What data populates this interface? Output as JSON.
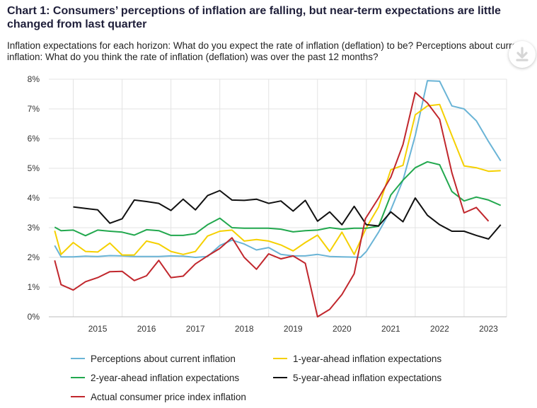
{
  "header": {
    "title": "Chart 1: Consumers’ perceptions of inflation are falling, but near-term expectations are little changed from last quarter",
    "subtitle": "Inflation expectations for each horizon: What do you expect the rate of inflation (deflation) to be? Perceptions about current inflation: What do you think the rate of inflation (deflation) was over the past 12 months?"
  },
  "toolbar": {
    "download_icon": "download-icon"
  },
  "chart_data": {
    "type": "line",
    "title": "Chart 1: Consumers’ perceptions of inflation are falling, but near-term expectations are little changed from last quarter",
    "xlabel": "",
    "ylabel": "",
    "x_range": [
      2014.5,
      2023.87
    ],
    "ylim": [
      0,
      8
    ],
    "grid": true,
    "y_ticks": [
      "0%",
      "1%",
      "2%",
      "3%",
      "4%",
      "5%",
      "6%",
      "7%",
      "8%"
    ],
    "x_ticks": [
      "2015",
      "2016",
      "2017",
      "2018",
      "2019",
      "2020",
      "2021",
      "2022",
      "2023"
    ],
    "legend_position": "bottom",
    "series": [
      {
        "name": "Perceptions about current inflation",
        "color": "#6ab4d6",
        "points": [
          [
            2014.62,
            2.4
          ],
          [
            2014.75,
            2.02
          ],
          [
            2015.0,
            2.02
          ],
          [
            2015.25,
            2.04
          ],
          [
            2015.5,
            2.03
          ],
          [
            2015.75,
            2.06
          ],
          [
            2016.0,
            2.05
          ],
          [
            2016.25,
            2.03
          ],
          [
            2016.5,
            2.03
          ],
          [
            2016.75,
            2.03
          ],
          [
            2017.0,
            2.05
          ],
          [
            2017.25,
            2.04
          ],
          [
            2017.5,
            2.0
          ],
          [
            2017.75,
            2.03
          ],
          [
            2018.0,
            2.4
          ],
          [
            2018.25,
            2.58
          ],
          [
            2018.5,
            2.45
          ],
          [
            2018.75,
            2.25
          ],
          [
            2019.0,
            2.33
          ],
          [
            2019.25,
            2.1
          ],
          [
            2019.5,
            2.05
          ],
          [
            2019.75,
            2.05
          ],
          [
            2020.0,
            2.1
          ],
          [
            2020.25,
            2.03
          ],
          [
            2020.5,
            2.02
          ],
          [
            2020.75,
            2.01
          ],
          [
            2020.88,
            2.0
          ],
          [
            2021.0,
            2.2
          ],
          [
            2021.25,
            2.85
          ],
          [
            2021.5,
            3.6
          ],
          [
            2021.75,
            4.6
          ],
          [
            2022.0,
            6.1
          ],
          [
            2022.25,
            7.95
          ],
          [
            2022.5,
            7.93
          ],
          [
            2022.75,
            7.1
          ],
          [
            2023.0,
            7.0
          ],
          [
            2023.25,
            6.6
          ],
          [
            2023.5,
            5.9
          ],
          [
            2023.75,
            5.25
          ]
        ]
      },
      {
        "name": "1-year-ahead inflation expectations",
        "color": "#f5d000",
        "points": [
          [
            2014.62,
            2.9
          ],
          [
            2014.75,
            2.1
          ],
          [
            2015.0,
            2.5
          ],
          [
            2015.25,
            2.2
          ],
          [
            2015.5,
            2.18
          ],
          [
            2015.75,
            2.48
          ],
          [
            2016.0,
            2.08
          ],
          [
            2016.25,
            2.08
          ],
          [
            2016.5,
            2.55
          ],
          [
            2016.75,
            2.45
          ],
          [
            2017.0,
            2.2
          ],
          [
            2017.25,
            2.1
          ],
          [
            2017.5,
            2.2
          ],
          [
            2017.75,
            2.72
          ],
          [
            2018.0,
            2.88
          ],
          [
            2018.25,
            2.92
          ],
          [
            2018.5,
            2.55
          ],
          [
            2018.75,
            2.6
          ],
          [
            2019.0,
            2.55
          ],
          [
            2019.25,
            2.42
          ],
          [
            2019.5,
            2.22
          ],
          [
            2019.75,
            2.5
          ],
          [
            2020.0,
            2.75
          ],
          [
            2020.25,
            2.2
          ],
          [
            2020.5,
            2.85
          ],
          [
            2020.75,
            2.1
          ],
          [
            2021.0,
            3.0
          ],
          [
            2021.25,
            3.7
          ],
          [
            2021.5,
            4.95
          ],
          [
            2021.75,
            5.1
          ],
          [
            2022.0,
            6.8
          ],
          [
            2022.25,
            7.1
          ],
          [
            2022.5,
            7.15
          ],
          [
            2022.75,
            6.1
          ],
          [
            2023.0,
            5.08
          ],
          [
            2023.25,
            5.02
          ],
          [
            2023.5,
            4.9
          ],
          [
            2023.75,
            4.92
          ]
        ]
      },
      {
        "name": "2-year-ahead inflation expectations",
        "color": "#22a84e",
        "points": [
          [
            2014.62,
            3.02
          ],
          [
            2014.75,
            2.9
          ],
          [
            2015.0,
            2.92
          ],
          [
            2015.25,
            2.73
          ],
          [
            2015.5,
            2.92
          ],
          [
            2015.75,
            2.88
          ],
          [
            2016.0,
            2.85
          ],
          [
            2016.25,
            2.75
          ],
          [
            2016.5,
            2.93
          ],
          [
            2016.75,
            2.9
          ],
          [
            2017.0,
            2.74
          ],
          [
            2017.25,
            2.74
          ],
          [
            2017.5,
            2.8
          ],
          [
            2017.75,
            3.1
          ],
          [
            2018.0,
            3.32
          ],
          [
            2018.25,
            3.0
          ],
          [
            2018.5,
            2.98
          ],
          [
            2018.75,
            2.98
          ],
          [
            2019.0,
            2.98
          ],
          [
            2019.25,
            2.95
          ],
          [
            2019.5,
            2.86
          ],
          [
            2019.75,
            2.9
          ],
          [
            2020.0,
            2.92
          ],
          [
            2020.25,
            3.0
          ],
          [
            2020.5,
            2.95
          ],
          [
            2020.75,
            2.98
          ],
          [
            2021.0,
            2.98
          ],
          [
            2021.25,
            3.05
          ],
          [
            2021.5,
            4.1
          ],
          [
            2021.75,
            4.6
          ],
          [
            2022.0,
            5.02
          ],
          [
            2022.25,
            5.22
          ],
          [
            2022.5,
            5.12
          ],
          [
            2022.75,
            4.22
          ],
          [
            2023.0,
            3.9
          ],
          [
            2023.25,
            4.03
          ],
          [
            2023.5,
            3.93
          ],
          [
            2023.75,
            3.75
          ]
        ]
      },
      {
        "name": "5-year-ahead inflation expectations",
        "color": "#111111",
        "points": [
          [
            2015.0,
            3.7
          ],
          [
            2015.25,
            3.65
          ],
          [
            2015.5,
            3.6
          ],
          [
            2015.75,
            3.15
          ],
          [
            2016.0,
            3.3
          ],
          [
            2016.25,
            3.93
          ],
          [
            2016.5,
            3.88
          ],
          [
            2016.75,
            3.82
          ],
          [
            2017.0,
            3.58
          ],
          [
            2017.25,
            3.96
          ],
          [
            2017.5,
            3.6
          ],
          [
            2017.75,
            4.08
          ],
          [
            2018.0,
            4.25
          ],
          [
            2018.25,
            3.93
          ],
          [
            2018.5,
            3.92
          ],
          [
            2018.75,
            3.96
          ],
          [
            2019.0,
            3.82
          ],
          [
            2019.25,
            3.9
          ],
          [
            2019.5,
            3.56
          ],
          [
            2019.75,
            3.92
          ],
          [
            2020.0,
            3.22
          ],
          [
            2020.25,
            3.53
          ],
          [
            2020.5,
            3.1
          ],
          [
            2020.75,
            3.72
          ],
          [
            2021.0,
            3.1
          ],
          [
            2021.25,
            3.06
          ],
          [
            2021.5,
            3.53
          ],
          [
            2021.75,
            3.2
          ],
          [
            2022.0,
            4.0
          ],
          [
            2022.25,
            3.42
          ],
          [
            2022.5,
            3.1
          ],
          [
            2022.75,
            2.88
          ],
          [
            2023.0,
            2.88
          ],
          [
            2023.25,
            2.74
          ],
          [
            2023.5,
            2.62
          ],
          [
            2023.75,
            3.1
          ]
        ]
      },
      {
        "name": "Actual consumer price index inflation",
        "color": "#c1272d",
        "points": [
          [
            2014.62,
            1.9
          ],
          [
            2014.75,
            1.08
          ],
          [
            2015.0,
            0.9
          ],
          [
            2015.25,
            1.18
          ],
          [
            2015.5,
            1.32
          ],
          [
            2015.75,
            1.52
          ],
          [
            2016.0,
            1.53
          ],
          [
            2016.25,
            1.22
          ],
          [
            2016.5,
            1.38
          ],
          [
            2016.75,
            1.9
          ],
          [
            2017.0,
            1.32
          ],
          [
            2017.25,
            1.37
          ],
          [
            2017.5,
            1.78
          ],
          [
            2017.75,
            2.05
          ],
          [
            2018.0,
            2.3
          ],
          [
            2018.25,
            2.66
          ],
          [
            2018.5,
            2.0
          ],
          [
            2018.75,
            1.6
          ],
          [
            2019.0,
            2.12
          ],
          [
            2019.25,
            1.95
          ],
          [
            2019.5,
            2.05
          ],
          [
            2019.75,
            1.8
          ],
          [
            2020.0,
            0.0
          ],
          [
            2020.25,
            0.25
          ],
          [
            2020.5,
            0.75
          ],
          [
            2020.75,
            1.45
          ],
          [
            2020.98,
            3.3
          ],
          [
            2021.25,
            4.0
          ],
          [
            2021.5,
            4.7
          ],
          [
            2021.75,
            5.8
          ],
          [
            2022.0,
            7.55
          ],
          [
            2022.25,
            7.2
          ],
          [
            2022.5,
            6.65
          ],
          [
            2022.75,
            4.85
          ],
          [
            2023.0,
            3.5
          ],
          [
            2023.25,
            3.68
          ],
          [
            2023.5,
            3.22
          ]
        ]
      }
    ]
  }
}
